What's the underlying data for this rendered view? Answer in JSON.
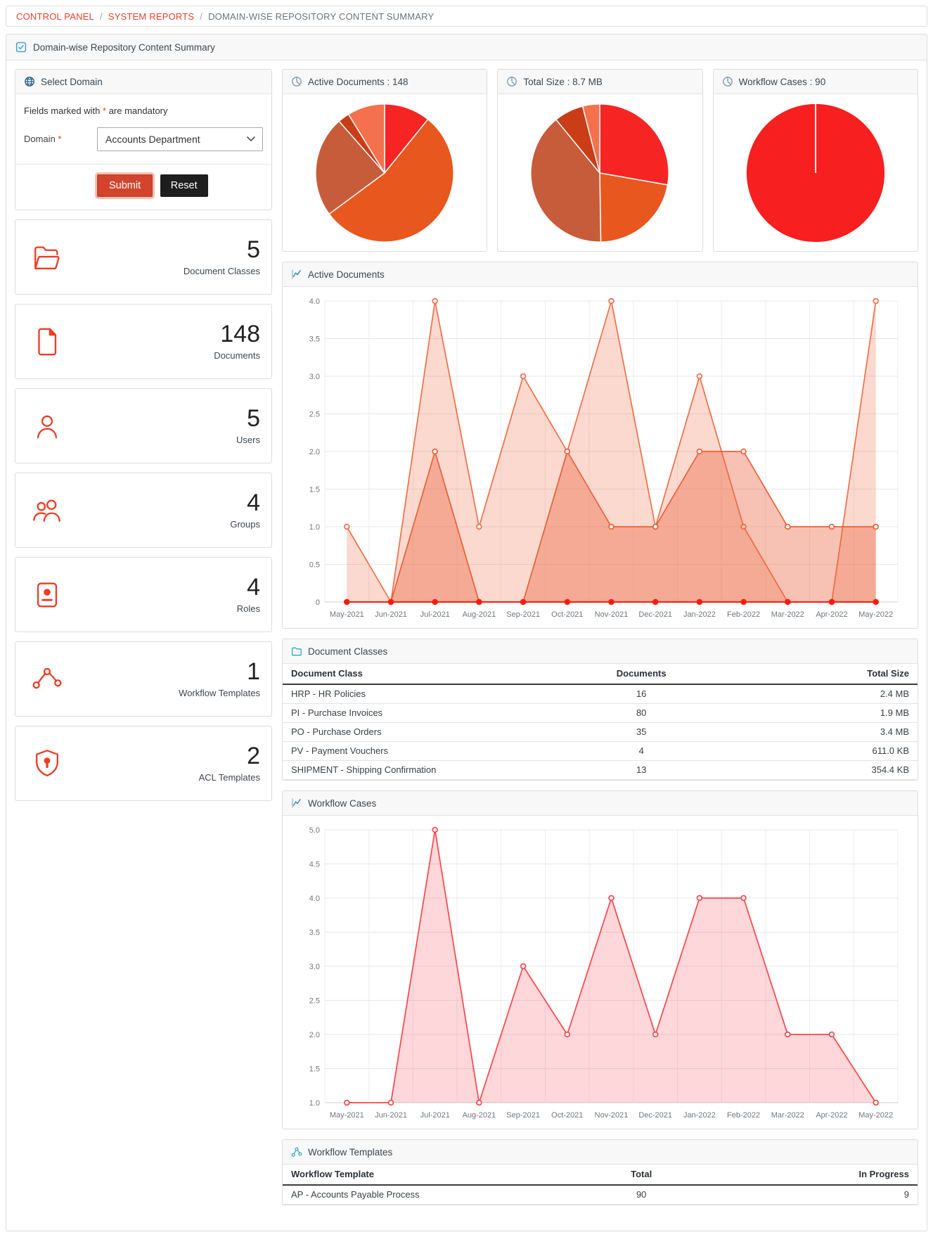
{
  "breadcrumb": {
    "separator": "/",
    "items": [
      {
        "label": "CONTROL PANEL"
      },
      {
        "label": "SYSTEM REPORTS"
      },
      {
        "label": "DOMAIN-WISE REPOSITORY CONTENT SUMMARY"
      }
    ]
  },
  "page": {
    "title": "Domain-wise Repository Content Summary"
  },
  "form": {
    "title": "Select Domain",
    "note_prefix": "Fields marked with",
    "note_star": "*",
    "note_suffix": "are mandatory",
    "domain_label": "Domain",
    "domain_star": "*",
    "domain_value": "Accounts Department",
    "submit_label": "Submit",
    "reset_label": "Reset"
  },
  "stats": [
    {
      "icon": "folder-open-icon",
      "value": "5",
      "label": "Document Classes"
    },
    {
      "icon": "document-icon",
      "value": "148",
      "label": "Documents"
    },
    {
      "icon": "user-icon",
      "value": "5",
      "label": "Users"
    },
    {
      "icon": "users-icon",
      "value": "4",
      "label": "Groups"
    },
    {
      "icon": "id-card-icon",
      "value": "4",
      "label": "Roles"
    },
    {
      "icon": "workflow-icon",
      "value": "1",
      "label": "Workflow Templates"
    },
    {
      "icon": "shield-icon",
      "value": "2",
      "label": "ACL Templates"
    }
  ],
  "colors": {
    "accent_red": "#e5402a",
    "stat_icon_red": "#ee3b25",
    "submit_bg": "#d2452c",
    "reset_bg": "#1e1e1e",
    "header_blue": "#3d9bc9",
    "cyan_icon": "#2ba6cb"
  },
  "chart_data": [
    {
      "type": "pie",
      "title": "Active Documents : 148",
      "total": 148,
      "labels": [
        "HRP - HR Policies",
        "PI - Purchase Invoices",
        "PO - Purchase Orders",
        "PV - Payment Vouchers",
        "SHIPMENT - Shipping Confirmation"
      ],
      "values": [
        16,
        80,
        35,
        4,
        13
      ],
      "colors": [
        "#f72424",
        "#e8571e",
        "#c75c3b",
        "#c93d17",
        "#f5714d"
      ],
      "legend": "none"
    },
    {
      "type": "pie",
      "title": "Total Size : 8.7 MB",
      "total_label": "8.7 MB",
      "units": "MB",
      "labels": [
        "HRP - HR Policies",
        "PI - Purchase Invoices",
        "PO - Purchase Orders",
        "PV - Payment Vouchers",
        "SHIPMENT - Shipping Confirmation"
      ],
      "values": [
        2.4,
        1.9,
        3.4,
        0.597,
        0.346
      ],
      "colors": [
        "#f72424",
        "#e8571e",
        "#c75c3b",
        "#c93d17",
        "#f5714d"
      ],
      "legend": "none"
    },
    {
      "type": "pie",
      "title": "Workflow Cases : 90",
      "total": 90,
      "labels": [
        "AP - Accounts Payable Process"
      ],
      "values": [
        90
      ],
      "colors": [
        "#f71f1f"
      ],
      "legend": "none"
    },
    {
      "type": "area",
      "title": "Active Documents",
      "categories": [
        "May-2021",
        "Jun-2021",
        "Jul-2021",
        "Aug-2021",
        "Sep-2021",
        "Oct-2021",
        "Nov-2021",
        "Dec-2021",
        "Jan-2022",
        "Feb-2022",
        "Mar-2022",
        "Apr-2022",
        "May-2022"
      ],
      "series": [
        {
          "name": "series-1",
          "values": [
            1,
            0,
            4,
            1,
            3,
            2,
            4,
            1,
            3,
            1,
            0,
            0,
            4
          ],
          "color": "#ef6f4a",
          "fill": "rgba(240,118,79,0.28)",
          "marker": "ring"
        },
        {
          "name": "series-2",
          "values": [
            0,
            0,
            2,
            0,
            0,
            2,
            1,
            1,
            2,
            2,
            1,
            1,
            1
          ],
          "color": "#ea5f38",
          "fill": "rgba(234,100,64,0.40)",
          "marker": "ring"
        },
        {
          "name": "series-3",
          "values": [
            0,
            0,
            0,
            0,
            0,
            0,
            0,
            0,
            0,
            0,
            0,
            0,
            0
          ],
          "color": "#fa1b0f",
          "fill": "none",
          "marker": "dot"
        }
      ],
      "ylim": [
        0,
        4
      ],
      "yticks": [
        0,
        0.5,
        1,
        1.5,
        2,
        2.5,
        3,
        3.5,
        4
      ],
      "ytick_labels": [
        "0",
        "0.5",
        "1.0",
        "1.5",
        "2.0",
        "2.5",
        "3.0",
        "3.5",
        "4.0"
      ],
      "grid": true,
      "legend": "none"
    },
    {
      "type": "area",
      "title": "Workflow Cases",
      "categories": [
        "May-2021",
        "Jun-2021",
        "Jul-2021",
        "Aug-2021",
        "Sep-2021",
        "Oct-2021",
        "Nov-2021",
        "Dec-2021",
        "Jan-2022",
        "Feb-2022",
        "Mar-2022",
        "Apr-2022",
        "May-2022"
      ],
      "series": [
        {
          "name": "workflow-cases",
          "values": [
            1,
            1,
            5,
            1,
            3,
            2,
            4,
            2,
            4,
            4,
            2,
            2,
            1
          ],
          "color": "#f8464c",
          "fill": "rgba(248,74,80,0.22)",
          "marker": "ring"
        }
      ],
      "ylim": [
        1,
        5
      ],
      "yticks": [
        1,
        1.5,
        2,
        2.5,
        3,
        3.5,
        4,
        4.5,
        5
      ],
      "ytick_labels": [
        "1.0",
        "1.5",
        "2.0",
        "2.5",
        "3.0",
        "3.5",
        "4.0",
        "4.5",
        "5.0"
      ],
      "grid": true,
      "legend": "none"
    }
  ],
  "tables": {
    "document_classes": {
      "title": "Document Classes",
      "columns": [
        "Document Class",
        "Documents",
        "Total Size"
      ],
      "rows": [
        [
          "HRP - HR Policies",
          "16",
          "2.4 MB"
        ],
        [
          "PI - Purchase Invoices",
          "80",
          "1.9 MB"
        ],
        [
          "PO - Purchase Orders",
          "35",
          "3.4 MB"
        ],
        [
          "PV - Payment Vouchers",
          "4",
          "611.0 KB"
        ],
        [
          "SHIPMENT - Shipping Confirmation",
          "13",
          "354.4 KB"
        ]
      ]
    },
    "workflow_templates": {
      "title": "Workflow Templates",
      "columns": [
        "Workflow Template",
        "Total",
        "In Progress"
      ],
      "rows": [
        [
          "AP - Accounts Payable Process",
          "90",
          "9"
        ]
      ]
    }
  }
}
